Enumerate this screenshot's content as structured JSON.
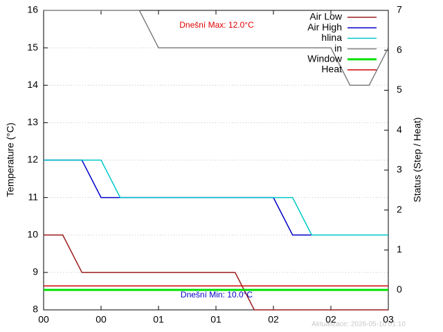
{
  "chart_data": {
    "type": "line",
    "ylabel": "Temperature (°C)",
    "y2label": "Status (Step / Heat)",
    "xlim": [
      0,
      180
    ],
    "xticks": [
      {
        "value": 0,
        "label": "00"
      },
      {
        "value": 30,
        "label": "00"
      },
      {
        "value": 60,
        "label": "01"
      },
      {
        "value": 90,
        "label": "01"
      },
      {
        "value": 120,
        "label": "02"
      },
      {
        "value": 150,
        "label": "02"
      },
      {
        "value": 180,
        "label": "03"
      }
    ],
    "ylim": [
      8,
      16
    ],
    "yticks": [
      8,
      9,
      10,
      11,
      12,
      13,
      14,
      15,
      16
    ],
    "y2lim": [
      -0.5,
      7
    ],
    "y2ticks": [
      0,
      1,
      2,
      3,
      4,
      5,
      6,
      7
    ],
    "grid": true,
    "legend": "top-right",
    "series": [
      {
        "name": "Air Low",
        "color": "#9b1c1c",
        "x": [
          0,
          10,
          20,
          100,
          110,
          180
        ],
        "values": [
          10,
          10,
          9,
          9,
          8,
          8
        ]
      },
      {
        "name": "Air High",
        "color": "#0000c8",
        "x": [
          0,
          20,
          30,
          120,
          130,
          180
        ],
        "values": [
          12,
          12,
          11,
          11,
          10,
          10
        ]
      },
      {
        "name": "hlina",
        "color": "#00c8c8",
        "x": [
          0,
          30,
          40,
          130,
          140,
          180
        ],
        "values": [
          12,
          12,
          11,
          11,
          10,
          10
        ]
      },
      {
        "name": "in",
        "color": "#808080",
        "x": [
          0,
          50,
          60,
          150,
          160,
          170,
          180
        ],
        "values": [
          16,
          16,
          15,
          15,
          14,
          14,
          15
        ]
      },
      {
        "name": "Window",
        "color": "#00e000",
        "axis": "y2",
        "x": [
          0,
          180
        ],
        "values": [
          0,
          0
        ]
      },
      {
        "name": "Heat",
        "color": "#d00000",
        "axis": "y2",
        "x": [
          0,
          180
        ],
        "values": [
          0.1,
          0.1
        ]
      }
    ],
    "annotations": [
      {
        "text": "Dnešní Max: 12.0°C",
        "color": "#e00000"
      },
      {
        "text": "Dnešní Min: 10.0°C",
        "color": "#0000c8"
      }
    ],
    "footer": "Aktualizace: 2026-05-10 01:10"
  }
}
